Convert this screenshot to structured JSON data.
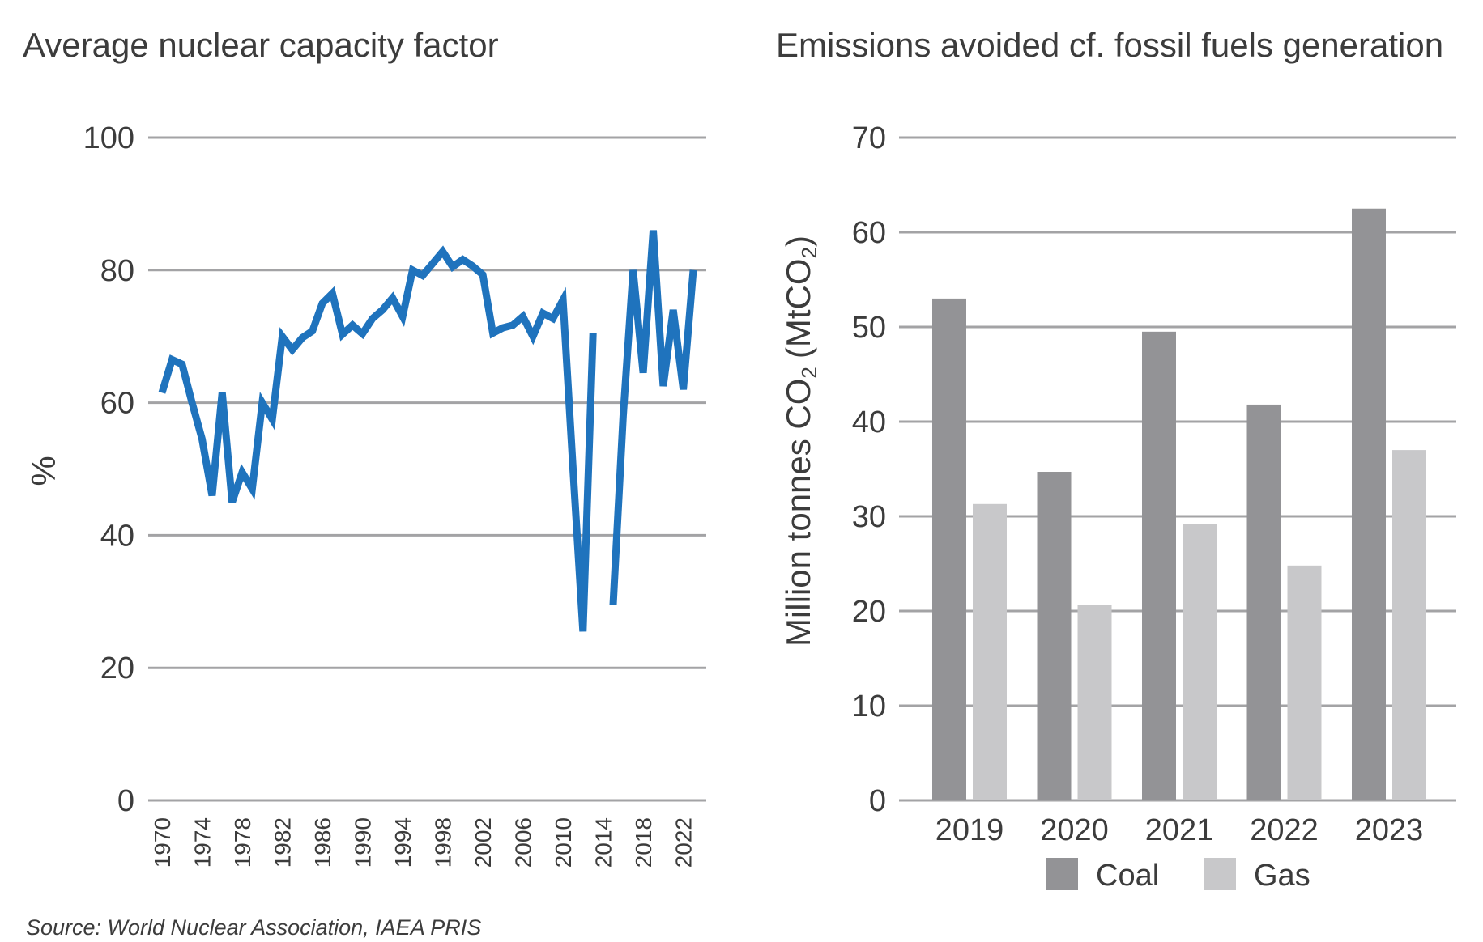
{
  "source": "Source: World Nuclear Association, IAEA PRIS",
  "chart_data": [
    {
      "type": "line",
      "title": "Average nuclear capacity factor",
      "xlabel": "",
      "ylabel": "%",
      "ylim": [
        0,
        100
      ],
      "yticks": [
        "0",
        "20",
        "40",
        "60",
        "80",
        "100"
      ],
      "xlim": [
        1970,
        2023
      ],
      "xticks": [
        "1970",
        "1974",
        "1978",
        "1982",
        "1986",
        "1990",
        "1994",
        "1998",
        "2002",
        "2006",
        "2010",
        "2014",
        "2018",
        "2022"
      ],
      "grid": true,
      "colors": {
        "line": "#1f73bd",
        "grid": "#a3a3a5"
      },
      "series": [
        {
          "x": [
            1970,
            1971,
            1972,
            1973,
            1974,
            1975,
            1976,
            1977,
            1978,
            1979,
            1980,
            1981,
            1982,
            1983,
            1984,
            1985,
            1986,
            1987,
            1988,
            1989,
            1990,
            1991,
            1992,
            1993,
            1994,
            1995,
            1996,
            1997,
            1998,
            1999,
            2000,
            2001,
            2002,
            2003,
            2004,
            2005,
            2006,
            2007,
            2008,
            2009,
            2010,
            2011,
            2012,
            2013,
            2014,
            2015,
            2016,
            2017,
            2018,
            2019,
            2020,
            2021,
            2022,
            2023
          ],
          "values": [
            61.5,
            66.5,
            65.8,
            60.0,
            54.5,
            46.0,
            61.5,
            45.0,
            49.5,
            47.0,
            60.0,
            57.5,
            70.0,
            68.0,
            69.8,
            70.8,
            75.0,
            76.5,
            70.3,
            71.7,
            70.4,
            72.7,
            74.0,
            75.8,
            73.0,
            80.0,
            79.2,
            81.0,
            82.8,
            80.5,
            81.6,
            80.6,
            79.3,
            70.5,
            71.3,
            71.7,
            73.0,
            70.0,
            73.5,
            72.7,
            75.5,
            50.0,
            25.5,
            70.5,
            null,
            29.5,
            58.0,
            80.0,
            64.5,
            86.0,
            62.5,
            74.0,
            62.0,
            80.0
          ]
        }
      ]
    },
    {
      "type": "bar",
      "title": "Emissions avoided cf. fossil fuels generation",
      "xlabel": "",
      "ylabel": "Million tonnes CO",
      "ylabel_sub": "2",
      "ylabel_unit": "(MtCO",
      "ylabel_unit_sub": "2",
      "ylabel_unit_close": ")",
      "ylim": [
        0,
        70
      ],
      "yticks": [
        "0",
        "10",
        "20",
        "30",
        "40",
        "50",
        "60",
        "70"
      ],
      "categories": [
        "2019",
        "2020",
        "2021",
        "2022",
        "2023"
      ],
      "grid": true,
      "legend_position": "bottom",
      "series": [
        {
          "name": "Coal",
          "color": "#939396",
          "values": [
            53.0,
            34.7,
            49.5,
            41.8,
            62.5
          ]
        },
        {
          "name": "Gas",
          "color": "#c8c8ca",
          "values": [
            31.3,
            20.6,
            29.2,
            24.8,
            37.0
          ]
        }
      ]
    }
  ]
}
